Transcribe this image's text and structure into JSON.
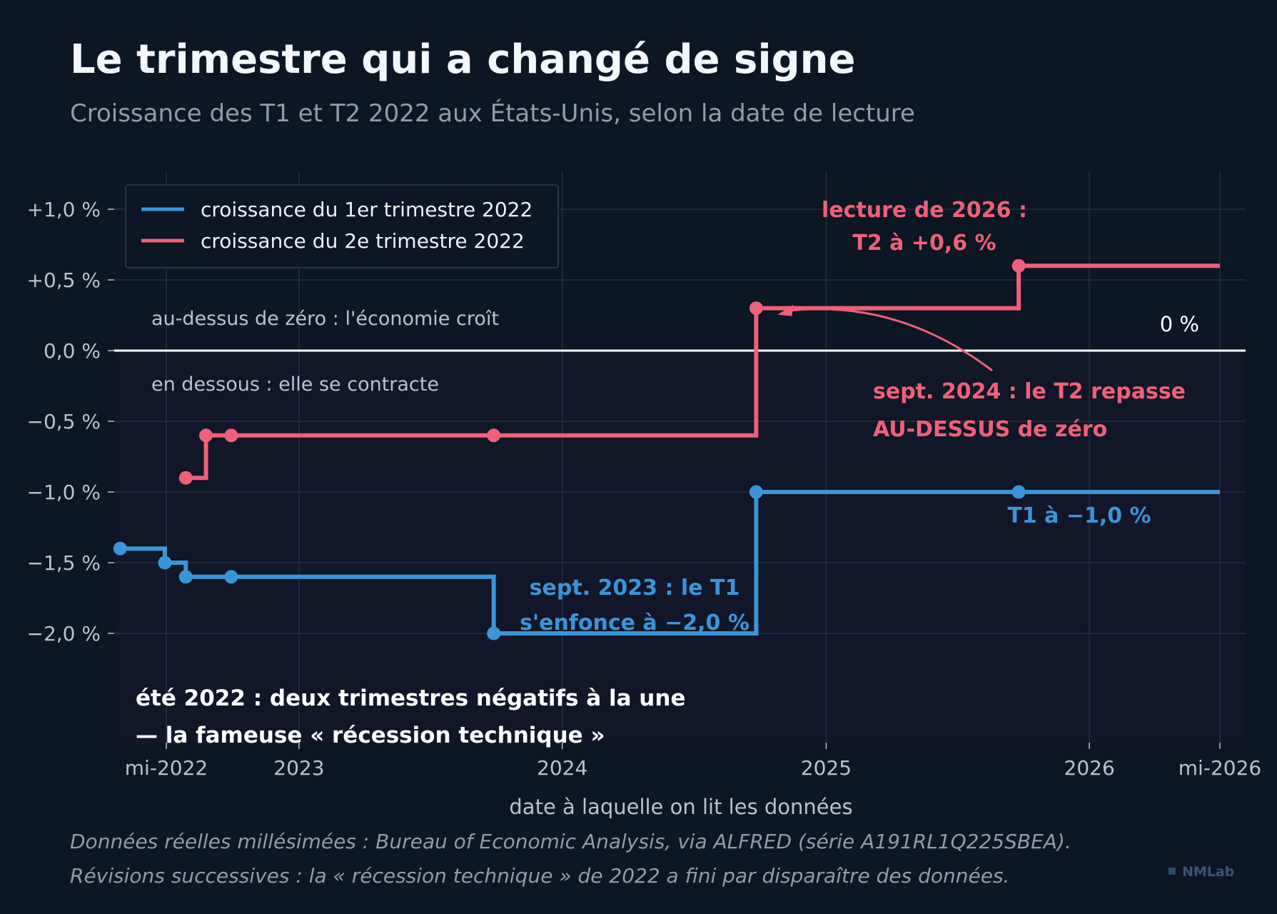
{
  "title": "Le trimestre qui a changé de signe",
  "subtitle": "Croissance des T1 et T2 2022 aux États-Unis, selon la date de lecture",
  "chart_data": {
    "type": "line",
    "step": "post",
    "xlabel": "date à laquelle on lit les données",
    "ylabel": "",
    "x_range": [
      "2022-04-20",
      "2026-06-30"
    ],
    "y_range": [
      -2.75,
      1.25
    ],
    "x_ticks": [
      {
        "date": "2022-07-01",
        "label": "mi-2022"
      },
      {
        "date": "2023-01-01",
        "label": "2023"
      },
      {
        "date": "2024-01-01",
        "label": "2024"
      },
      {
        "date": "2025-01-01",
        "label": "2025"
      },
      {
        "date": "2026-01-01",
        "label": "2026"
      },
      {
        "date": "2026-07-01",
        "label": "mi-2026"
      }
    ],
    "y_ticks": [
      {
        "value": 1.0,
        "label": "+1,0 %"
      },
      {
        "value": 0.5,
        "label": "+0,5 %"
      },
      {
        "value": 0.0,
        "label": "0,0 %"
      },
      {
        "value": -0.5,
        "label": "−0,5 %"
      },
      {
        "value": -1.0,
        "label": "−1,0 %"
      },
      {
        "value": -1.5,
        "label": "−1,5 %"
      },
      {
        "value": -2.0,
        "label": "−2,0 %"
      }
    ],
    "grid": true,
    "legend_position": "top-left",
    "series": [
      {
        "name": "croissance du 1er trimestre 2022",
        "color": "#3a95d8",
        "points": [
          {
            "x": "2022-04-28",
            "y": -1.4
          },
          {
            "x": "2022-06-29",
            "y": -1.5
          },
          {
            "x": "2022-07-28",
            "y": -1.6
          },
          {
            "x": "2022-09-29",
            "y": -1.6
          },
          {
            "x": "2023-09-28",
            "y": -2.0
          },
          {
            "x": "2024-09-26",
            "y": -1.0
          },
          {
            "x": "2025-09-25",
            "y": -1.0
          },
          {
            "x": "2026-07-01",
            "y": -1.0
          }
        ],
        "markers": [
          0,
          1,
          2,
          3,
          4,
          5,
          6
        ]
      },
      {
        "name": "croissance du 2e trimestre 2022",
        "color": "#f0607a",
        "points": [
          {
            "x": "2022-07-28",
            "y": -0.9
          },
          {
            "x": "2022-08-25",
            "y": -0.6
          },
          {
            "x": "2022-09-29",
            "y": -0.6
          },
          {
            "x": "2023-09-28",
            "y": -0.6
          },
          {
            "x": "2024-09-26",
            "y": 0.3
          },
          {
            "x": "2025-09-25",
            "y": 0.6
          },
          {
            "x": "2026-07-01",
            "y": 0.6
          }
        ],
        "markers": [
          0,
          1,
          2,
          3,
          4,
          5
        ]
      }
    ],
    "zero_label": "0 %",
    "above_zero_note": "au-dessus de zéro : l'économie croît",
    "below_zero_note": "en dessous : elle se contracte",
    "annotations": {
      "t2_2026": [
        "lecture de 2026 :",
        "T2 à +0,6 %"
      ],
      "t2_sept2024": [
        "sept. 2024 : le T2 repasse",
        "AU-DESSUS de zéro"
      ],
      "t1_final": "T1 à −1,0 %",
      "t1_sept2023": [
        "sept. 2023 : le T1",
        "s'enfonce à −2,0 %"
      ],
      "summer2022": [
        "été 2022 : deux trimestres négatifs à la une",
        "— la fameuse « récession technique »"
      ]
    }
  },
  "footer": {
    "line1": "Données réelles millésimées : Bureau of Economic Analysis, via ALFRED (série A191RL1Q225SBEA).",
    "line2": "Révisions successives : la « récession technique » de 2022 a fini par disparaître des données.",
    "brand": "NMLab"
  },
  "colors": {
    "background": "#0c1624",
    "plot_background": "#121629",
    "t1": "#3a95d8",
    "t2": "#f0607a",
    "zero_line": "#ffffff",
    "grid": "#222f45"
  }
}
